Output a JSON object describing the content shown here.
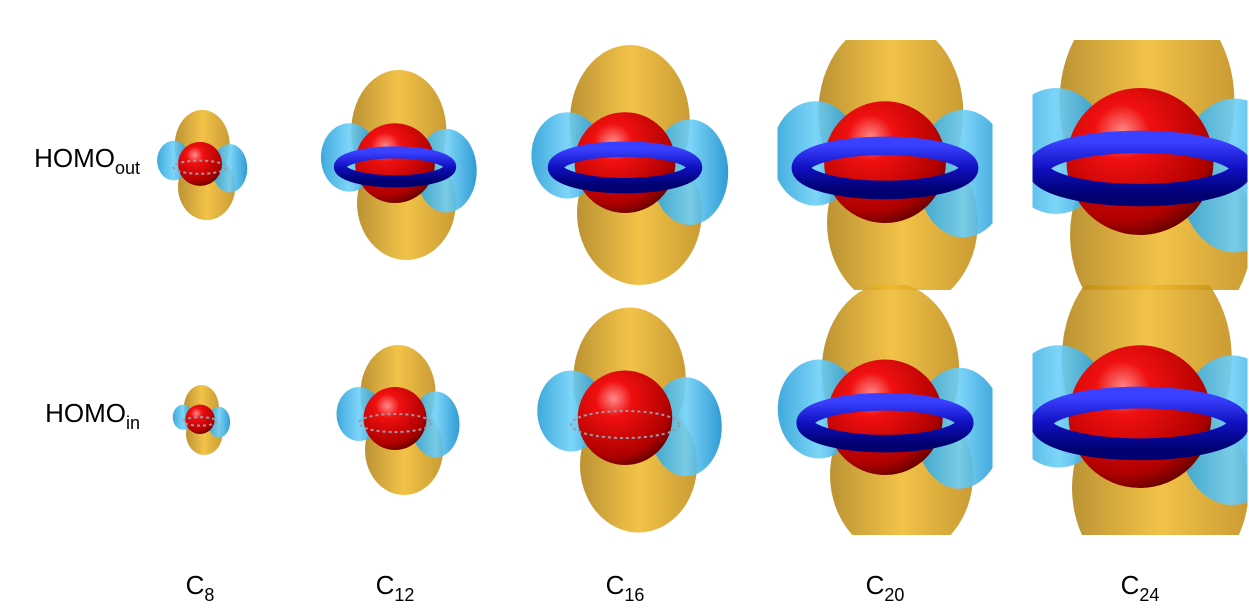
{
  "row_labels": [
    {
      "base": "HOMO",
      "sub": "out"
    },
    {
      "base": "HOMO",
      "sub": "in"
    }
  ],
  "column_labels": [
    {
      "base": "C",
      "sub": "8"
    },
    {
      "base": "C",
      "sub": "12"
    },
    {
      "base": "C",
      "sub": "16"
    },
    {
      "base": "C",
      "sub": "20"
    },
    {
      "base": "C",
      "sub": "24"
    }
  ]
}
